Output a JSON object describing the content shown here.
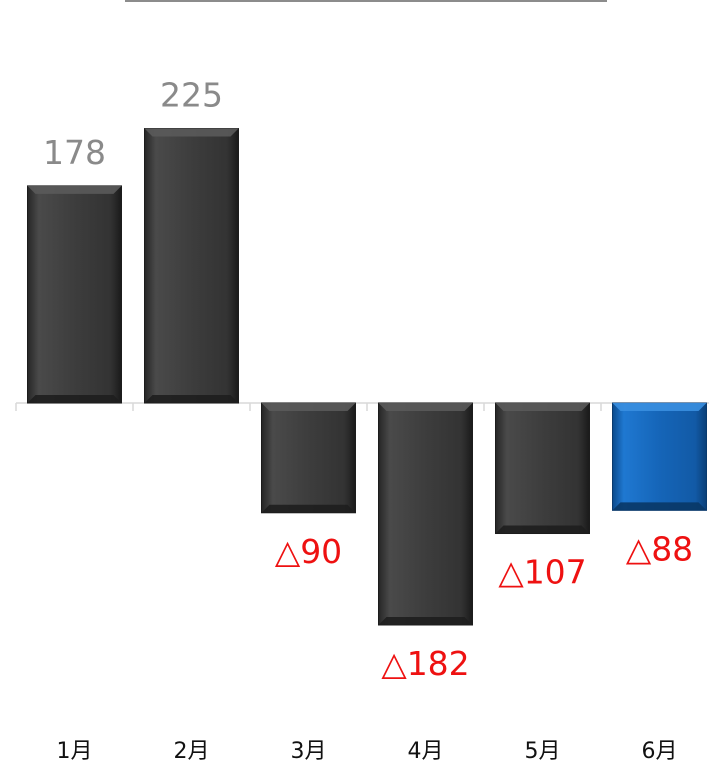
{
  "chart_data": {
    "type": "bar",
    "categories": [
      "1月",
      "2月",
      "3月",
      "4月",
      "5月",
      "6月"
    ],
    "values": [
      178,
      225,
      -90,
      -182,
      -107,
      -88
    ],
    "data_labels": [
      "178",
      "225",
      "△90",
      "△182",
      "△107",
      "△88"
    ],
    "highlight_index": 5,
    "colors": {
      "default_bar": "#3d3d3d",
      "highlight_bar": "#1565b8",
      "positive_label": "#8a8a8a",
      "negative_label": "#ee1111",
      "axis": "#d9d9d9",
      "category_label": "#111111"
    },
    "title": "",
    "xlabel": "",
    "ylabel": "",
    "ylim": [
      -182,
      225
    ],
    "grid": false,
    "legend": "none"
  }
}
